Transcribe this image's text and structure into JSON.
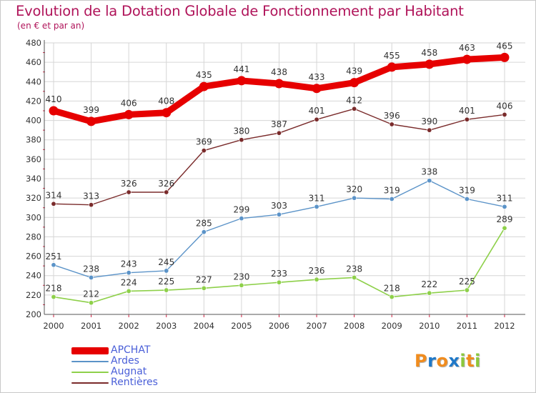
{
  "header": {
    "title": "Evolution de la Dotation Globale de Fonctionnement par Habitant",
    "subtitle": "(en € et par an)"
  },
  "logo": {
    "letters": [
      "P",
      "r",
      "o",
      "x",
      "i",
      "t",
      "i"
    ],
    "colors": [
      "#f08c1e",
      "#1e78c8",
      "#f08c1e",
      "#1e78c8",
      "#8cc83c",
      "#f08c1e",
      "#8cc83c"
    ]
  },
  "chart_data": {
    "type": "line",
    "x": [
      "2000",
      "2001",
      "2002",
      "2003",
      "2004",
      "2005",
      "2006",
      "2007",
      "2008",
      "2009",
      "2010",
      "2011",
      "2012"
    ],
    "ylim": [
      200,
      480
    ],
    "yticks": [
      200,
      220,
      240,
      260,
      280,
      300,
      320,
      340,
      360,
      380,
      400,
      420,
      440,
      460,
      480
    ],
    "grid": true,
    "legend_position": "bottom-left",
    "series": [
      {
        "name": "APCHAT",
        "color": "#e60000",
        "values": [
          410,
          399,
          406,
          408,
          435,
          441,
          438,
          433,
          439,
          455,
          458,
          463,
          465
        ]
      },
      {
        "name": "Ardes",
        "color": "#5b93c8",
        "values": [
          251,
          238,
          243,
          245,
          285,
          299,
          303,
          311,
          320,
          319,
          338,
          319,
          311
        ]
      },
      {
        "name": "Augnat",
        "color": "#8ed04a",
        "values": [
          218,
          212,
          224,
          225,
          227,
          230,
          233,
          236,
          238,
          218,
          222,
          225,
          289
        ]
      },
      {
        "name": "Rentières",
        "color": "#7a2b2b",
        "values": [
          314,
          313,
          326,
          326,
          369,
          380,
          387,
          401,
          412,
          396,
          390,
          401,
          406
        ]
      }
    ]
  }
}
